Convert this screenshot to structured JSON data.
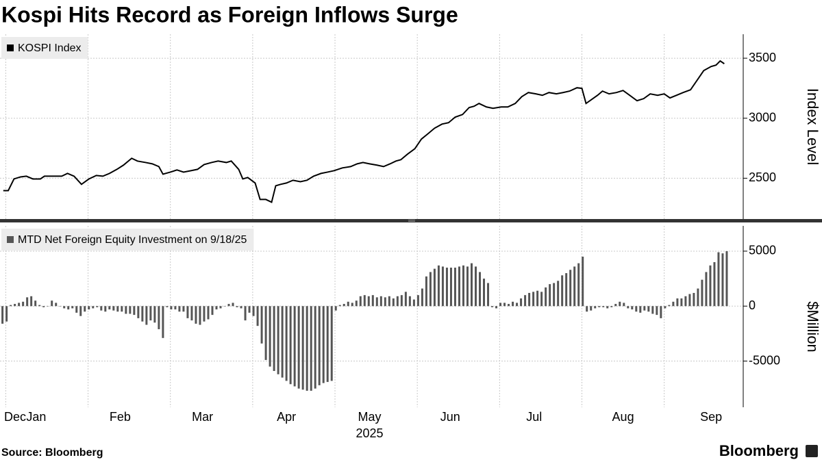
{
  "title": "Kospi Hits Record as Foreign Inflows Surge",
  "source": "Source: Bloomberg",
  "logo": "Bloomberg",
  "chart_data": [
    {
      "type": "line",
      "y_axis_label": "Index Level",
      "xlim": [
        0.93,
        9.96
      ],
      "xgrid": [
        1,
        2,
        3,
        4,
        5,
        6,
        7,
        8,
        9
      ],
      "ylim": [
        2160,
        3700
      ],
      "yticks": [
        2500,
        3000,
        3500
      ],
      "grid": true,
      "legend": "top-left",
      "x": [
        0.97,
        1.03,
        1.1,
        1.18,
        1.25,
        1.33,
        1.42,
        1.47,
        1.58,
        1.68,
        1.75,
        1.83,
        1.92,
        2.01,
        2.1,
        2.18,
        2.26,
        2.35,
        2.43,
        2.53,
        2.6,
        2.7,
        2.78,
        2.86,
        2.91,
        3.0,
        3.08,
        3.16,
        3.25,
        3.33,
        3.41,
        3.5,
        3.58,
        3.68,
        3.74,
        3.83,
        3.88,
        3.94,
        4.03,
        4.09,
        4.16,
        4.23,
        4.28,
        4.34,
        4.41,
        4.49,
        4.58,
        4.66,
        4.74,
        4.83,
        4.91,
        4.99,
        5.09,
        5.19,
        5.27,
        5.34,
        5.42,
        5.51,
        5.59,
        5.67,
        5.74,
        5.8,
        5.88,
        5.97,
        6.05,
        6.13,
        6.21,
        6.3,
        6.38,
        6.46,
        6.55,
        6.63,
        6.69,
        6.75,
        6.84,
        6.92,
        7.02,
        7.1,
        7.19,
        7.27,
        7.35,
        7.44,
        7.52,
        7.6,
        7.69,
        7.77,
        7.85,
        7.94,
        8.0,
        8.05,
        8.12,
        8.19,
        8.25,
        8.33,
        8.42,
        8.5,
        8.58,
        8.67,
        8.75,
        8.83,
        8.92,
        9.0,
        9.07,
        9.15,
        9.23,
        9.32,
        9.4,
        9.48,
        9.57,
        9.63,
        9.68,
        9.73
      ],
      "series": [
        {
          "name": "KOSPI Index",
          "color": "#000000",
          "values": [
            2397,
            2397,
            2494,
            2511,
            2517,
            2494,
            2494,
            2517,
            2517,
            2517,
            2540,
            2517,
            2449,
            2494,
            2523,
            2517,
            2540,
            2574,
            2609,
            2666,
            2643,
            2631,
            2620,
            2597,
            2534,
            2551,
            2569,
            2551,
            2563,
            2574,
            2614,
            2631,
            2643,
            2631,
            2643,
            2574,
            2494,
            2506,
            2460,
            2323,
            2323,
            2300,
            2437,
            2449,
            2460,
            2483,
            2471,
            2483,
            2517,
            2540,
            2551,
            2563,
            2586,
            2597,
            2620,
            2631,
            2620,
            2609,
            2597,
            2620,
            2643,
            2654,
            2700,
            2746,
            2826,
            2871,
            2917,
            2951,
            2963,
            3009,
            3031,
            3089,
            3100,
            3123,
            3094,
            3083,
            3094,
            3094,
            3123,
            3180,
            3214,
            3203,
            3191,
            3214,
            3203,
            3214,
            3226,
            3254,
            3249,
            3123,
            3157,
            3191,
            3226,
            3203,
            3214,
            3231,
            3191,
            3146,
            3163,
            3203,
            3191,
            3203,
            3169,
            3191,
            3214,
            3237,
            3317,
            3397,
            3431,
            3443,
            3477,
            3454
          ]
        }
      ]
    },
    {
      "type": "bar",
      "y_axis_label": "$Million",
      "xlabel": "2025",
      "xlim": [
        0.93,
        9.96
      ],
      "xgrid": [
        1,
        2,
        3,
        4,
        5,
        6,
        7,
        8,
        9
      ],
      "xticks": [
        {
          "value": 1.04,
          "label": "Dec"
        },
        {
          "value": 1.37,
          "label": "Jan"
        },
        {
          "value": 2.39,
          "label": "Feb"
        },
        {
          "value": 3.39,
          "label": "Mar"
        },
        {
          "value": 4.41,
          "label": "Apr"
        },
        {
          "value": 5.42,
          "label": "May"
        },
        {
          "value": 6.4,
          "label": "Jun"
        },
        {
          "value": 7.42,
          "label": "Jul"
        },
        {
          "value": 8.5,
          "label": "Aug"
        },
        {
          "value": 9.57,
          "label": "Sep"
        }
      ],
      "ylim": [
        -9200,
        7300
      ],
      "yticks": [
        5000,
        0,
        -5000
      ],
      "grid": true,
      "legend": "top-left",
      "x": [
        0.96,
        1.01,
        1.06,
        1.11,
        1.16,
        1.21,
        1.26,
        1.31,
        1.36,
        1.41,
        1.46,
        1.51,
        1.56,
        1.61,
        1.66,
        1.71,
        1.76,
        1.81,
        1.86,
        1.91,
        1.96,
        2.01,
        2.06,
        2.11,
        2.16,
        2.21,
        2.26,
        2.31,
        2.36,
        2.41,
        2.46,
        2.51,
        2.56,
        2.61,
        2.66,
        2.71,
        2.76,
        2.81,
        2.86,
        2.91,
        2.96,
        3.01,
        3.06,
        3.11,
        3.16,
        3.21,
        3.26,
        3.31,
        3.36,
        3.41,
        3.46,
        3.51,
        3.56,
        3.61,
        3.66,
        3.71,
        3.76,
        3.81,
        3.86,
        3.91,
        3.96,
        4.01,
        4.06,
        4.11,
        4.16,
        4.21,
        4.26,
        4.31,
        4.36,
        4.41,
        4.46,
        4.51,
        4.56,
        4.61,
        4.66,
        4.71,
        4.76,
        4.81,
        4.86,
        4.91,
        4.96,
        5.01,
        5.06,
        5.11,
        5.16,
        5.21,
        5.26,
        5.31,
        5.36,
        5.41,
        5.46,
        5.51,
        5.56,
        5.61,
        5.66,
        5.71,
        5.76,
        5.81,
        5.86,
        5.91,
        5.96,
        6.01,
        6.06,
        6.11,
        6.16,
        6.21,
        6.26,
        6.31,
        6.36,
        6.41,
        6.46,
        6.51,
        6.56,
        6.61,
        6.66,
        6.71,
        6.76,
        6.81,
        6.86,
        6.91,
        6.96,
        7.01,
        7.06,
        7.11,
        7.16,
        7.21,
        7.26,
        7.31,
        7.36,
        7.41,
        7.46,
        7.51,
        7.56,
        7.61,
        7.66,
        7.71,
        7.76,
        7.81,
        7.86,
        7.91,
        7.96,
        8.01,
        8.06,
        8.11,
        8.16,
        8.21,
        8.26,
        8.31,
        8.36,
        8.41,
        8.46,
        8.51,
        8.56,
        8.61,
        8.66,
        8.71,
        8.76,
        8.81,
        8.86,
        8.91,
        8.96,
        9.01,
        9.06,
        9.11,
        9.16,
        9.21,
        9.26,
        9.31,
        9.36,
        9.41,
        9.46,
        9.51,
        9.56,
        9.61,
        9.66,
        9.71,
        9.76
      ],
      "series": [
        {
          "name": "MTD Net Foreign Equity Investment on 9/18/25",
          "color": "#555555",
          "values": [
            -1600,
            -1400,
            100,
            200,
            300,
            400,
            800,
            900,
            500,
            100,
            -100,
            0,
            500,
            300,
            0,
            -200,
            -300,
            -200,
            -600,
            -900,
            -500,
            -300,
            -200,
            -100,
            -400,
            -500,
            -300,
            -400,
            -500,
            -500,
            -700,
            -700,
            -800,
            -1100,
            -1400,
            -1700,
            -1300,
            -1500,
            -2100,
            -2900,
            -100,
            -300,
            -300,
            -500,
            -500,
            -1100,
            -1300,
            -1600,
            -1700,
            -1400,
            -1200,
            -800,
            -300,
            -200,
            0,
            200,
            300,
            -100,
            -200,
            -1300,
            -600,
            -900,
            -1800,
            -3400,
            -4900,
            -5500,
            -5900,
            -6200,
            -6500,
            -6800,
            -7100,
            -7300,
            -7500,
            -7600,
            -7700,
            -7700,
            -7500,
            -7200,
            -7000,
            -6900,
            -6800,
            -400,
            100,
            200,
            400,
            300,
            500,
            900,
            1000,
            900,
            1000,
            800,
            900,
            800,
            900,
            700,
            900,
            1000,
            1300,
            900,
            600,
            1000,
            1600,
            2700,
            3100,
            3400,
            3700,
            3600,
            3500,
            3500,
            3500,
            3600,
            3700,
            3600,
            3900,
            3600,
            3100,
            2500,
            2100,
            -100,
            -200,
            300,
            300,
            200,
            400,
            300,
            700,
            1000,
            1200,
            1300,
            1400,
            1300,
            1700,
            2000,
            2100,
            2300,
            2800,
            3000,
            3300,
            3600,
            3900,
            4500,
            -500,
            -400,
            -200,
            -100,
            -100,
            -200,
            -100,
            200,
            400,
            300,
            -200,
            -300,
            -500,
            -600,
            -400,
            -500,
            -700,
            -800,
            -1100,
            -200,
            100,
            400,
            700,
            700,
            900,
            1100,
            1200,
            1600,
            2400,
            3100,
            3700,
            4000,
            4900,
            4800,
            5000
          ]
        }
      ]
    }
  ]
}
